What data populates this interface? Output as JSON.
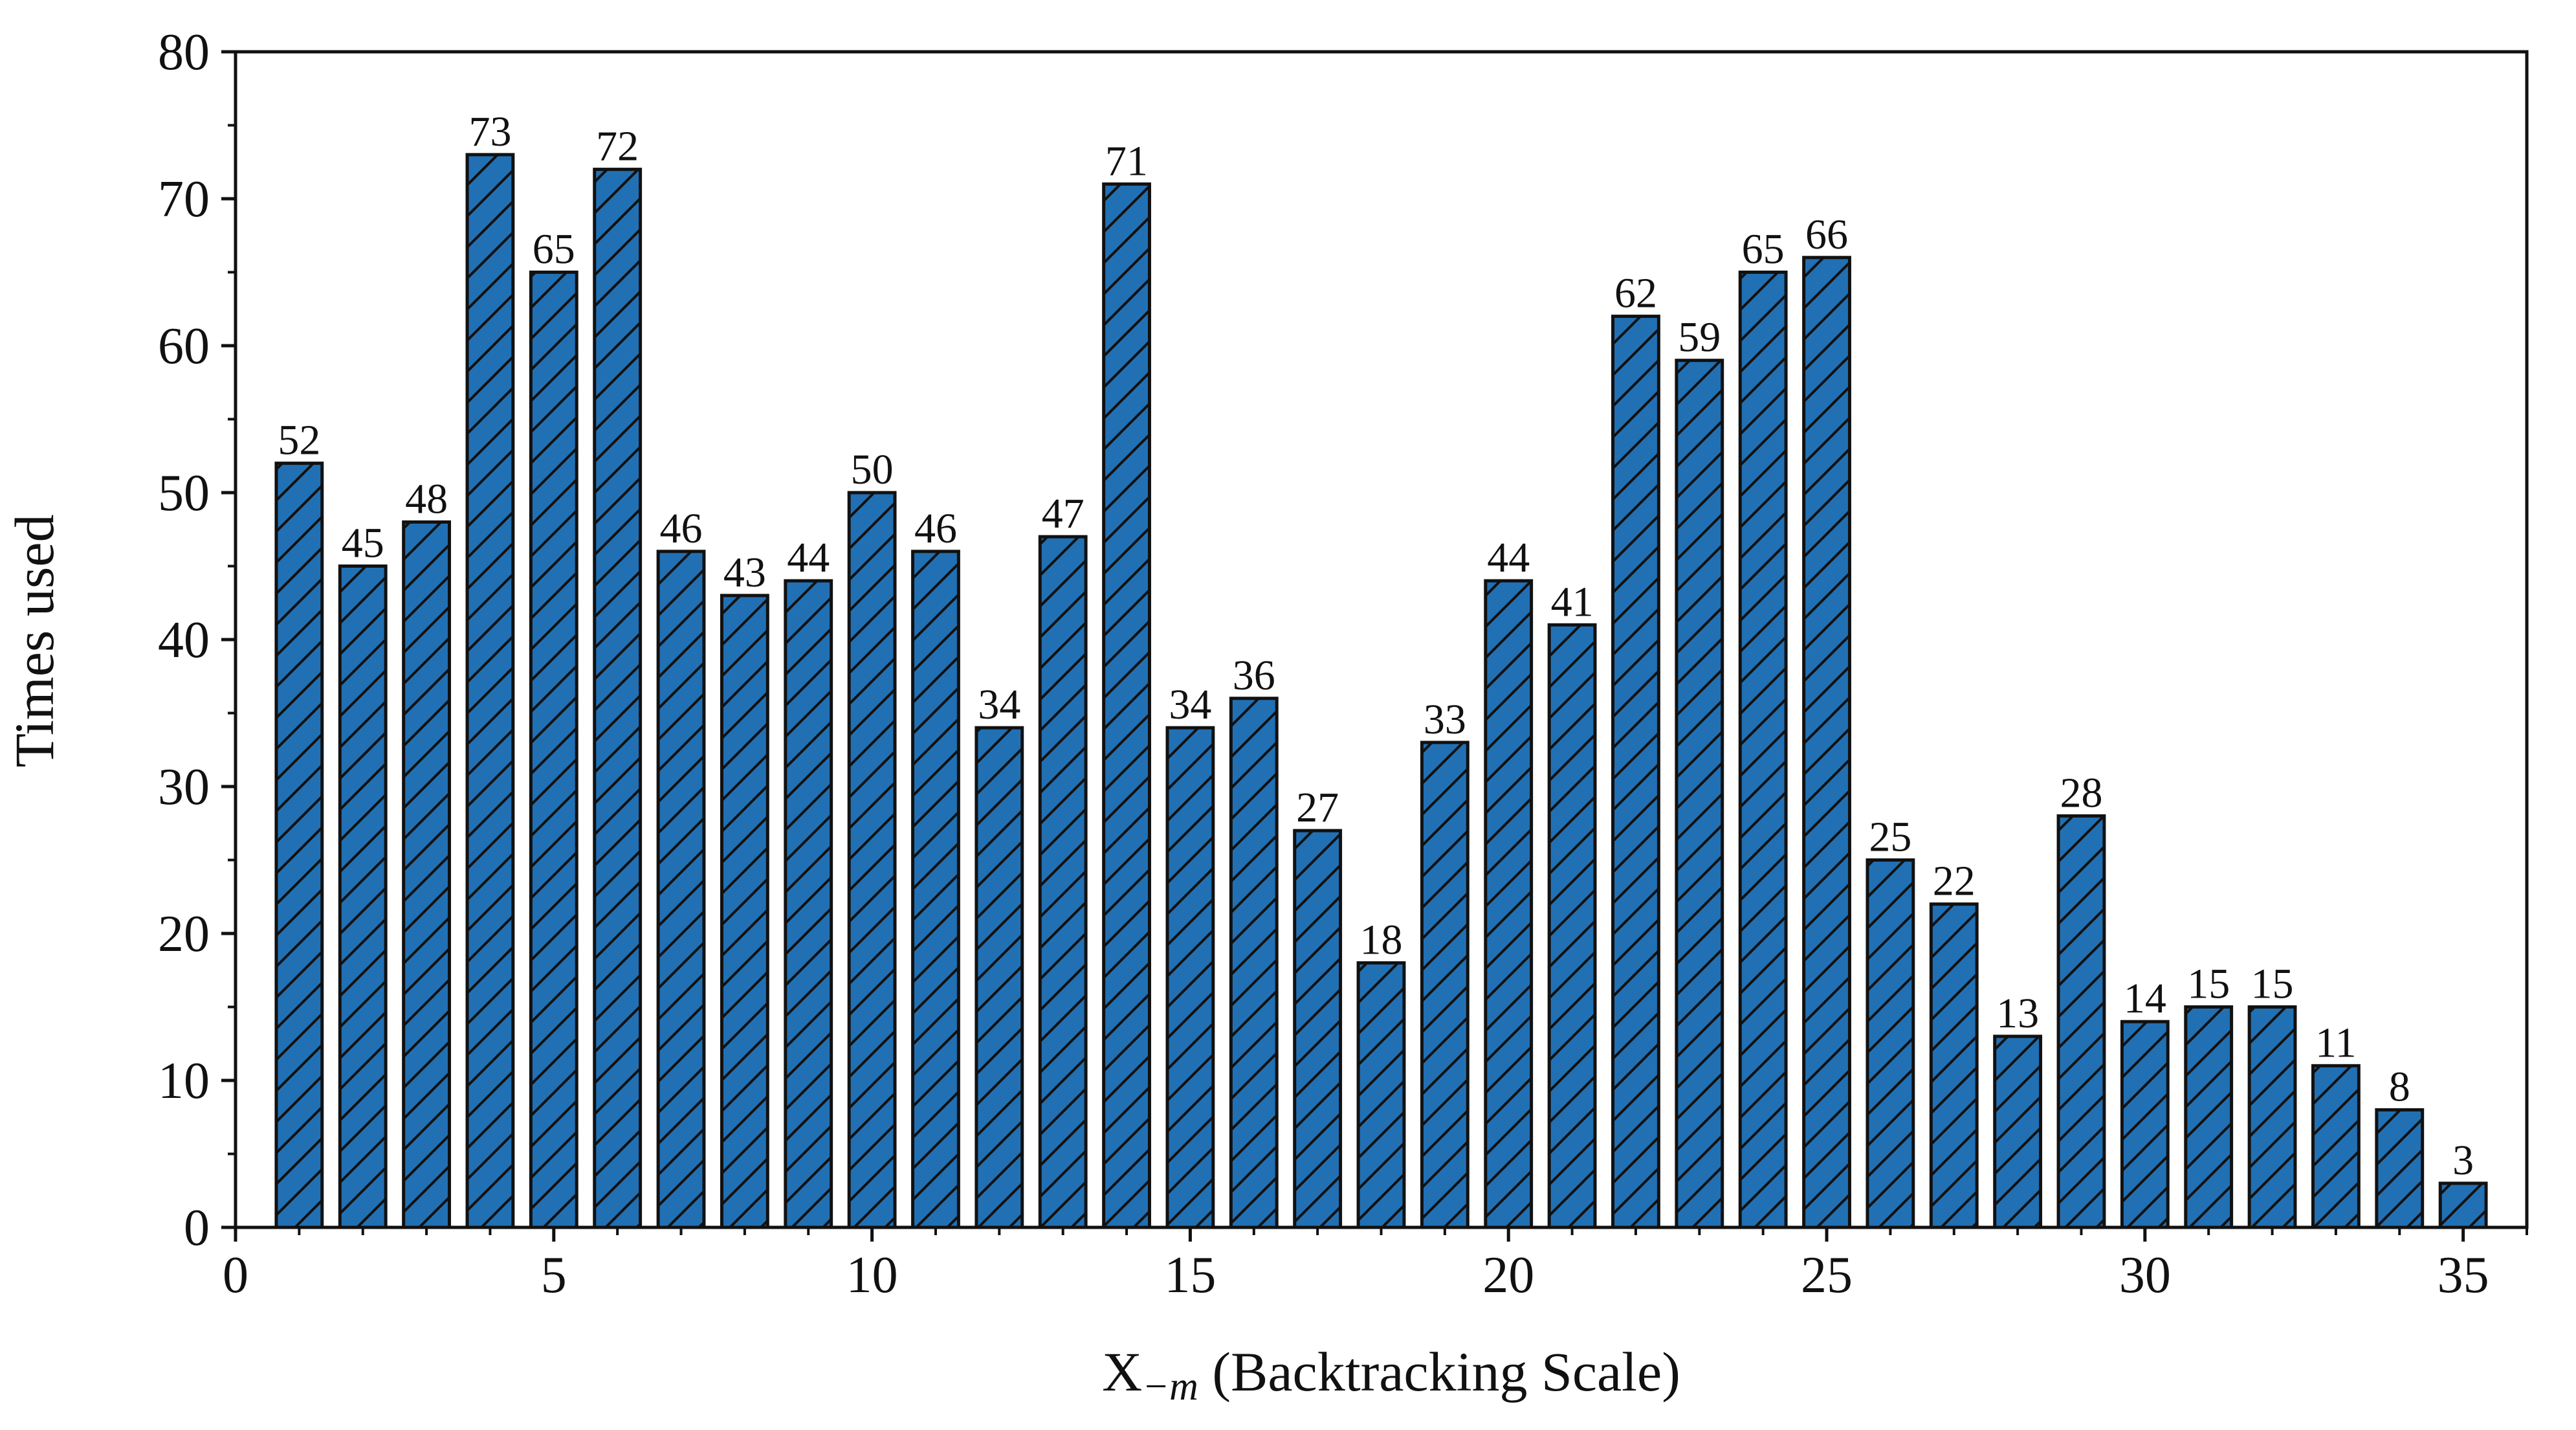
{
  "chart_data": {
    "type": "bar",
    "title": "",
    "xlabel": "X",
    "xlabel_subscript": "−m",
    "xlabel_suffix": " (Backtracking Scale)",
    "ylabel": "Times used",
    "xlim": [
      0,
      36
    ],
    "ylim": [
      0,
      80
    ],
    "x_ticks": [
      0,
      5,
      10,
      15,
      20,
      25,
      30,
      35
    ],
    "y_ticks": [
      0,
      10,
      20,
      30,
      40,
      50,
      60,
      70,
      80
    ],
    "grid": false,
    "bar_color": "#2270b4",
    "bar_edge_color": "#111111",
    "hatch": "diagonal",
    "x": [
      1,
      2,
      3,
      4,
      5,
      6,
      7,
      8,
      9,
      10,
      11,
      12,
      13,
      14,
      15,
      16,
      17,
      18,
      19,
      20,
      21,
      22,
      23,
      24,
      25,
      26,
      27,
      28,
      29,
      30,
      31,
      32,
      33,
      34,
      35
    ],
    "values": [
      52,
      45,
      48,
      73,
      65,
      72,
      46,
      43,
      44,
      50,
      46,
      34,
      47,
      71,
      34,
      36,
      27,
      18,
      33,
      44,
      41,
      62,
      59,
      65,
      66,
      25,
      22,
      13,
      28,
      14,
      15,
      15,
      11,
      8,
      3
    ]
  }
}
